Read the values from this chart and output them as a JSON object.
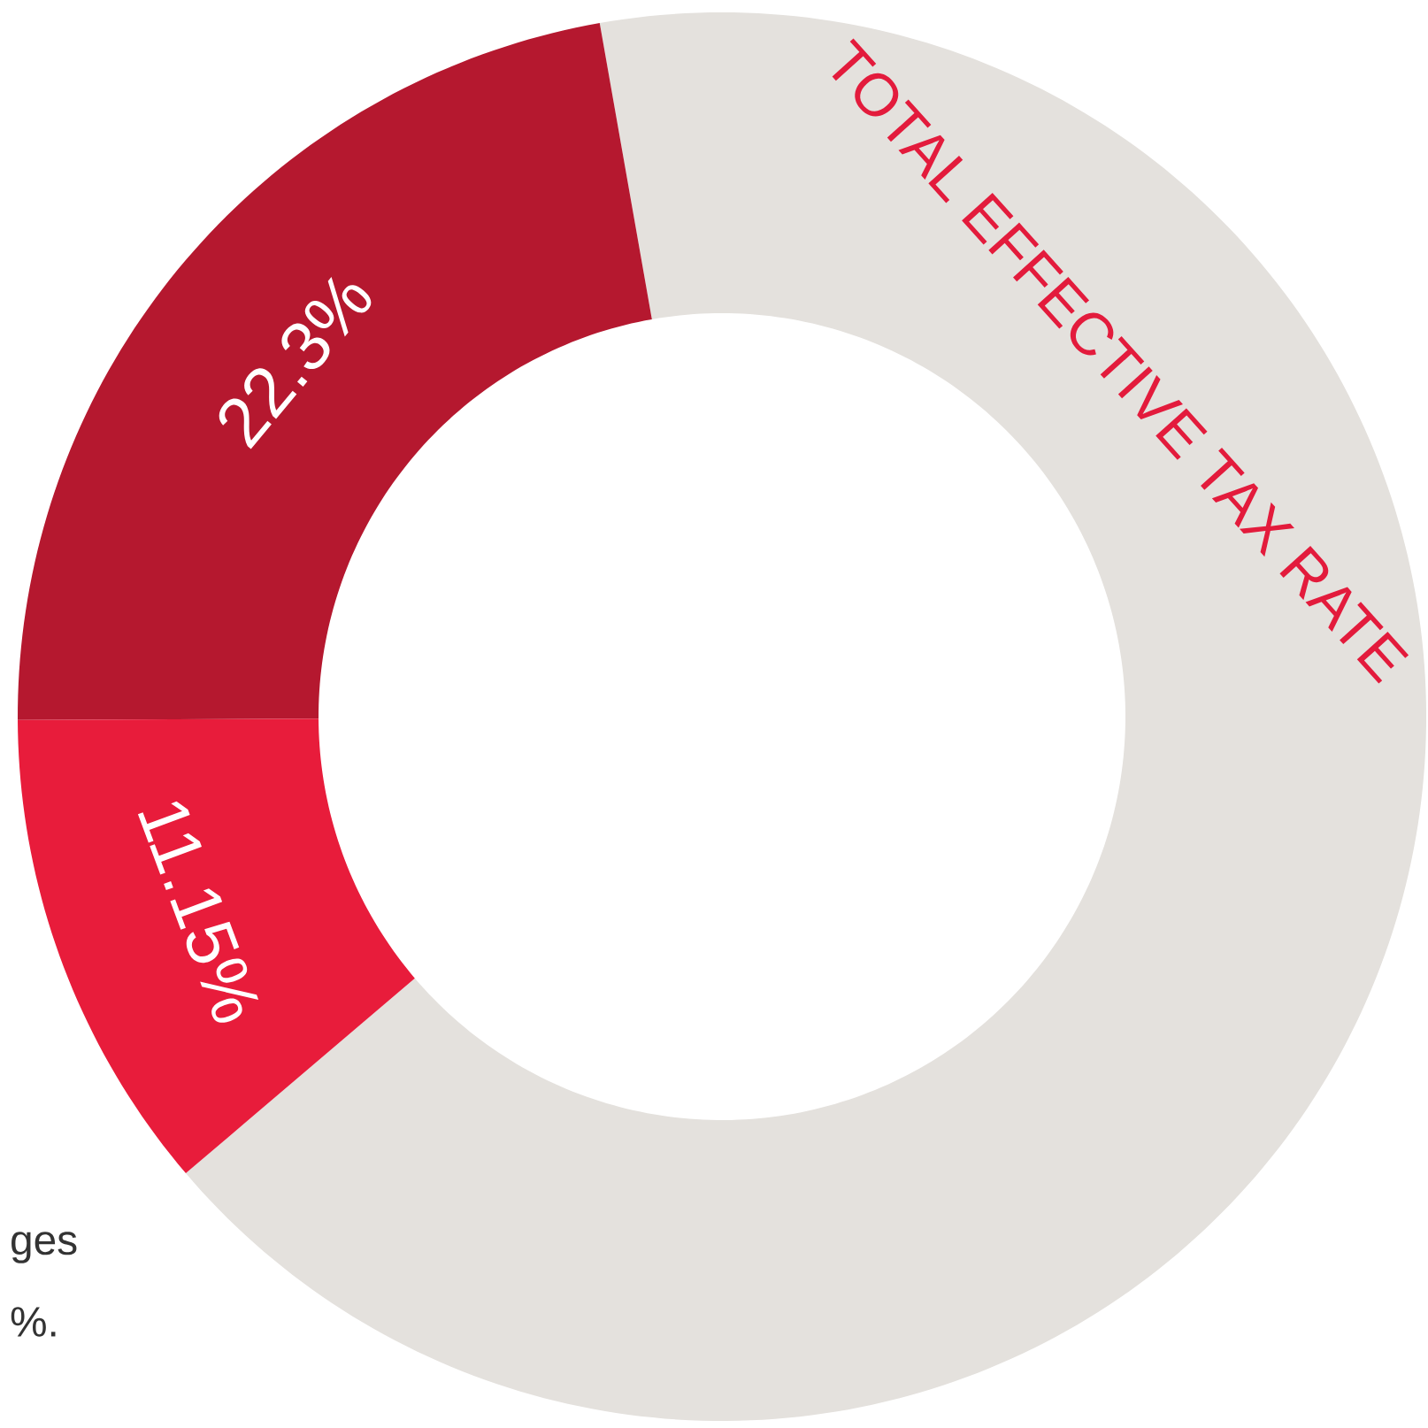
{
  "chart_data": {
    "type": "donut",
    "title": "TOTAL EFFECTIVE TAX RATE",
    "categories": [
      null,
      null,
      null
    ],
    "values": [
      22.3,
      11.15,
      66.55
    ],
    "colors": [
      "#b5182f",
      "#e81c3b",
      "#e4e1dd"
    ],
    "value_labels": [
      "22.3%",
      "11.15%",
      null
    ],
    "annotations": [
      "ges",
      "%."
    ]
  }
}
